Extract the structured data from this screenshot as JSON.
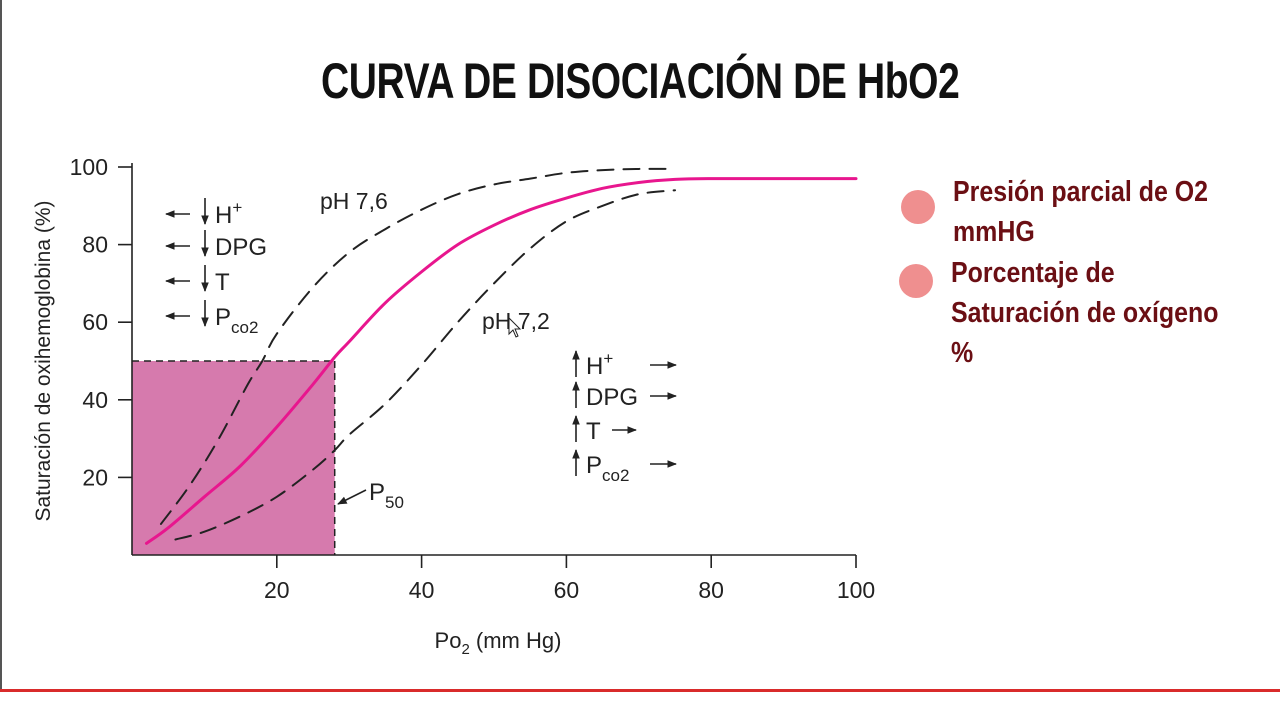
{
  "title": "CURVA DE DISOCIACIÓN DE HbO2",
  "legend": [
    {
      "text": "Presión parcial de O2\nmmHG"
    },
    {
      "text": "Porcentaje de\nSaturación de oxígeno\n%"
    }
  ],
  "colors": {
    "main_curve": "#e8168e",
    "p50_fill": "#d67aad",
    "legend_dot": "#ef8f8f",
    "legend_text": "#6b0f14",
    "bottom_rule": "#d92b2b"
  },
  "chart_data": {
    "type": "line",
    "xlabel": "Po",
    "xlabel_sub": "2",
    "xlabel_unit": " (mm Hg)",
    "ylabel": "Saturación de oxihemoglobina (%)",
    "xlim": [
      0,
      100
    ],
    "ylim": [
      0,
      100
    ],
    "xticks": [
      20,
      40,
      60,
      80,
      100
    ],
    "yticks": [
      20,
      40,
      60,
      80,
      100
    ],
    "grid": false,
    "series": [
      {
        "name": "",
        "style": "solid",
        "x": [
          2,
          5,
          10,
          15,
          20,
          25,
          28,
          30,
          35,
          40,
          45,
          50,
          55,
          60,
          65,
          70,
          75,
          80,
          90,
          100
        ],
        "y": [
          3,
          7,
          15,
          23,
          33,
          44,
          51,
          55,
          65,
          73,
          80,
          85,
          89,
          92,
          94.5,
          96,
          96.8,
          97,
          97,
          97
        ]
      },
      {
        "name": "pH 7,6",
        "style": "dashed",
        "x": [
          4,
          8,
          12,
          16,
          18,
          20,
          25,
          30,
          35,
          40,
          45,
          50,
          55,
          60,
          65,
          70,
          75
        ],
        "y": [
          8,
          18,
          30,
          44,
          50,
          57,
          69,
          78,
          84,
          89,
          93,
          95.5,
          97,
          98.5,
          99.2,
          99.5,
          99.5
        ]
      },
      {
        "name": "pH 7,2",
        "style": "dashed",
        "x": [
          6,
          10,
          15,
          20,
          25,
          28,
          30,
          35,
          40,
          45,
          50,
          55,
          60,
          65,
          70,
          75
        ],
        "y": [
          4,
          6,
          10,
          15,
          22,
          27,
          31,
          39,
          49,
          60,
          70,
          79,
          86,
          90,
          93,
          94
        ]
      }
    ],
    "p50_region": {
      "x": [
        0,
        28
      ],
      "y": [
        0,
        50
      ]
    },
    "annotations": {
      "left_factors": [
        "H",
        "DPG",
        "T",
        "P"
      ],
      "left_super_h": "+",
      "left_sub_p": "co2",
      "right_factors": [
        "H",
        "DPG",
        "T",
        "P"
      ],
      "right_super_h": "+",
      "right_sub_p": "co2",
      "p50_main": "P",
      "p50_sub": "50"
    }
  }
}
